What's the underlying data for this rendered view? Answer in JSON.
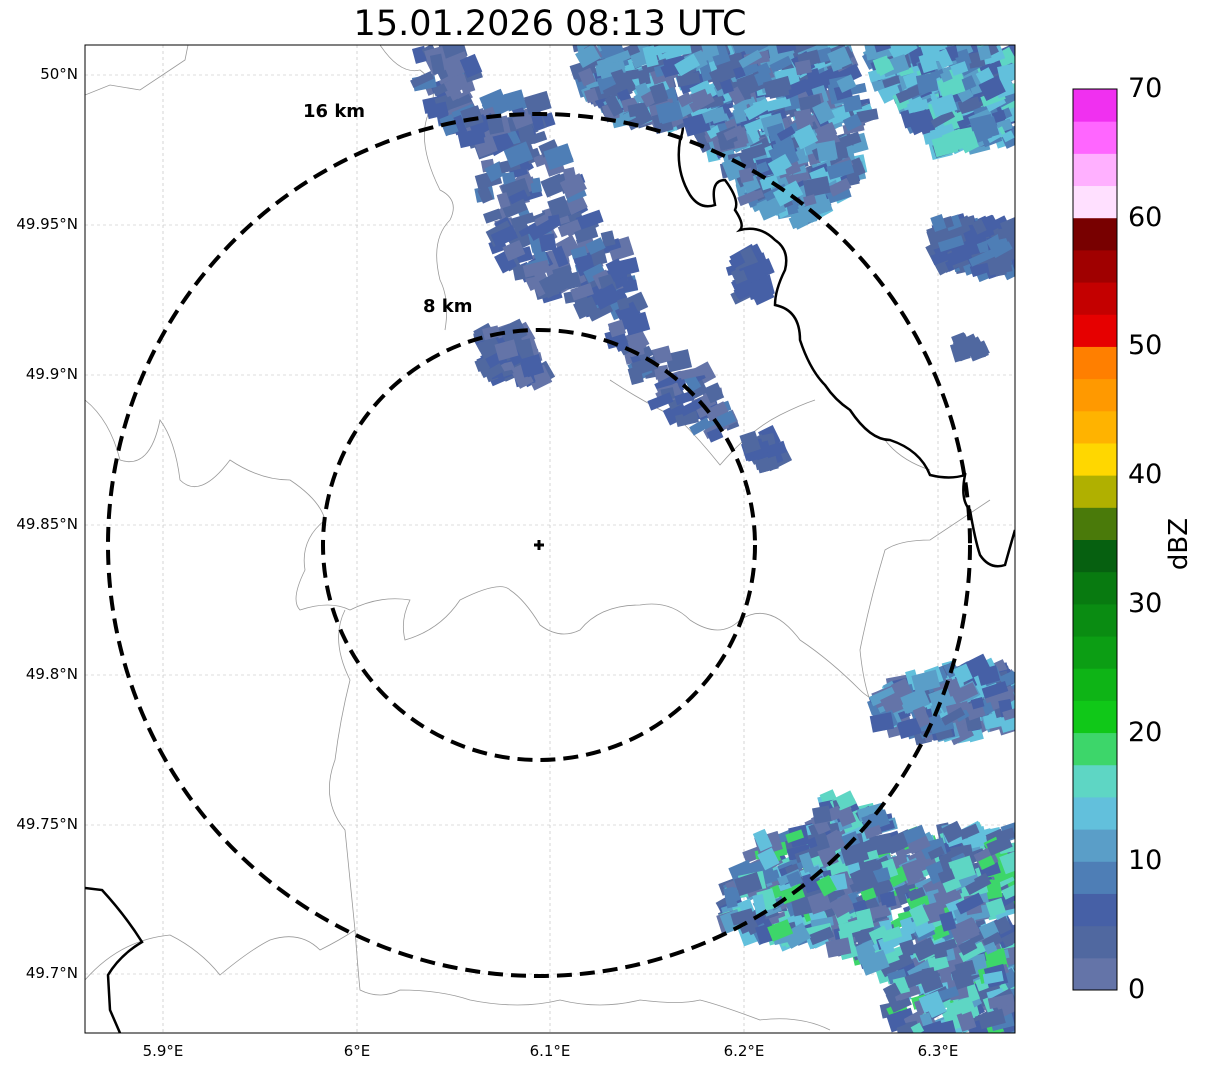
{
  "title": "15.01.2026 08:13 UTC",
  "range_rings": [
    {
      "label": "8 km",
      "radius_km": 8
    },
    {
      "label": "16 km",
      "radius_km": 16
    }
  ],
  "lat_ticks": [
    "50°N",
    "49.95°N",
    "49.9°N",
    "49.85°N",
    "49.8°N",
    "49.75°N",
    "49.7°N"
  ],
  "lon_ticks": [
    "5.9°E",
    "6°E",
    "6.1°E",
    "6.2°E",
    "6.3°E"
  ],
  "colorbar": {
    "label": "dBZ",
    "ticks": [
      "0",
      "10",
      "20",
      "30",
      "40",
      "50",
      "60",
      "70"
    ],
    "range": [
      0,
      70
    ],
    "step": 2.5,
    "colors": [
      "#6474a8",
      "#5068a0",
      "#4660a6",
      "#4e7eb6",
      "#5a9ec8",
      "#62c0dc",
      "#5ed6c4",
      "#3dd66a",
      "#10c818",
      "#0eb416",
      "#0c9e14",
      "#0a8c12",
      "#087a10",
      "#066010",
      "#4a7a0a",
      "#b0b000",
      "#ffd700",
      "#ffb300",
      "#ff9900",
      "#ff7f00",
      "#e60000",
      "#c40000",
      "#a00000",
      "#780000",
      "#ffe0ff",
      "#ffb0ff",
      "#ff66ff",
      "#f030f0"
    ]
  }
}
